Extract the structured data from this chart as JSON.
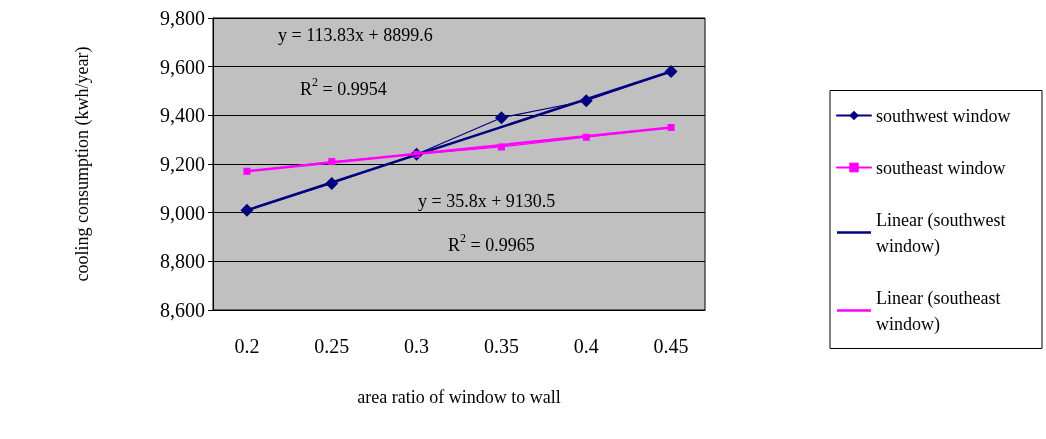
{
  "chart_data": {
    "type": "line",
    "xlabel": "area ratio of window to wall",
    "ylabel": "cooling consumption (kwh/year)",
    "x": [
      0.2,
      0.25,
      0.3,
      0.35,
      0.4,
      0.45
    ],
    "xlim": [
      0.18,
      0.47
    ],
    "xticks": [
      0.2,
      0.25,
      0.3,
      0.35,
      0.4,
      0.45
    ],
    "ylim": [
      8600,
      9800
    ],
    "yticks": [
      {
        "value": 8600,
        "label": "8,600"
      },
      {
        "value": 8800,
        "label": "8,800"
      },
      {
        "value": 9000,
        "label": "9,000"
      },
      {
        "value": 9200,
        "label": "9,200"
      },
      {
        "value": 9400,
        "label": "9,400"
      },
      {
        "value": 9600,
        "label": "9,600"
      },
      {
        "value": 9800,
        "label": "9,800"
      }
    ],
    "grid": "y",
    "legend": "right",
    "series": [
      {
        "name": "southwest window",
        "color": "#000080",
        "marker": "diamond",
        "values": [
          9010,
          9120,
          9240,
          9390,
          9460,
          9580
        ]
      },
      {
        "name": "southeast window",
        "color": "#ff00ff",
        "marker": "square",
        "values": [
          9170,
          9210,
          9240,
          9270,
          9310,
          9350
        ]
      },
      {
        "name": "Linear (southwest window)",
        "color": "#000080",
        "marker": "none",
        "values": [
          9010,
          null,
          null,
          null,
          null,
          9580
        ]
      },
      {
        "name": "Linear (southeast window)",
        "color": "#ff00ff",
        "marker": "none",
        "values": [
          9170,
          null,
          null,
          null,
          null,
          9350
        ]
      }
    ],
    "annotations": [
      "y = 113.83x + 8899.6",
      "R$^{2}$ = 0.9954",
      "y = 35.8x + 9130.5",
      "R$^{2}$ = 0.9965"
    ]
  }
}
